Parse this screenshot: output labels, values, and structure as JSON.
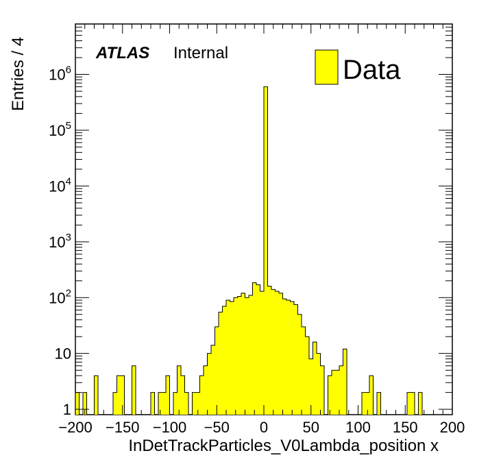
{
  "chart_data": {
    "type": "histogram",
    "xlabel": "InDetTrackParticles_V0Lambda_position x",
    "ylabel": "Entries / 4",
    "x_range": [
      -200,
      200
    ],
    "y_range": [
      0.8,
      8000000
    ],
    "y_scale": "log",
    "bin_width": 4,
    "fill_color": "#ffff00",
    "line_color": "#000000",
    "x_ticks": [
      {
        "value": -200,
        "label": "−200"
      },
      {
        "value": -150,
        "label": "−150"
      },
      {
        "value": -100,
        "label": "−100"
      },
      {
        "value": -50,
        "label": "−50"
      },
      {
        "value": 0,
        "label": "0"
      },
      {
        "value": 50,
        "label": "50"
      },
      {
        "value": 100,
        "label": "100"
      },
      {
        "value": 150,
        "label": "150"
      },
      {
        "value": 200,
        "label": "200"
      }
    ],
    "y_ticks": [
      {
        "value": 1,
        "base": "1",
        "exp": ""
      },
      {
        "value": 10,
        "base": "10",
        "exp": ""
      },
      {
        "value": 100,
        "base": "10",
        "exp": "2"
      },
      {
        "value": 1000,
        "base": "10",
        "exp": "3"
      },
      {
        "value": 10000,
        "base": "10",
        "exp": "4"
      },
      {
        "value": 100000,
        "base": "10",
        "exp": "5"
      },
      {
        "value": 1000000,
        "base": "10",
        "exp": "6"
      }
    ],
    "bins": [
      {
        "x0": -200,
        "count": 2
      },
      {
        "x0": -196,
        "count": 0
      },
      {
        "x0": -192,
        "count": 2
      },
      {
        "x0": -188,
        "count": 0
      },
      {
        "x0": -184,
        "count": 0
      },
      {
        "x0": -180,
        "count": 4
      },
      {
        "x0": -176,
        "count": 0
      },
      {
        "x0": -172,
        "count": 0
      },
      {
        "x0": -168,
        "count": 0
      },
      {
        "x0": -164,
        "count": 0
      },
      {
        "x0": -160,
        "count": 2
      },
      {
        "x0": -156,
        "count": 4
      },
      {
        "x0": -152,
        "count": 4
      },
      {
        "x0": -148,
        "count": 0
      },
      {
        "x0": -144,
        "count": 0
      },
      {
        "x0": -140,
        "count": 6
      },
      {
        "x0": -136,
        "count": 0
      },
      {
        "x0": -132,
        "count": 0
      },
      {
        "x0": -128,
        "count": 0
      },
      {
        "x0": -124,
        "count": 0
      },
      {
        "x0": -120,
        "count": 2
      },
      {
        "x0": -116,
        "count": 0
      },
      {
        "x0": -112,
        "count": 2
      },
      {
        "x0": -108,
        "count": 2
      },
      {
        "x0": -104,
        "count": 4
      },
      {
        "x0": -100,
        "count": 0
      },
      {
        "x0": -96,
        "count": 2
      },
      {
        "x0": -92,
        "count": 6
      },
      {
        "x0": -88,
        "count": 4
      },
      {
        "x0": -84,
        "count": 2
      },
      {
        "x0": -80,
        "count": 0
      },
      {
        "x0": -76,
        "count": 2
      },
      {
        "x0": -72,
        "count": 2
      },
      {
        "x0": -68,
        "count": 4
      },
      {
        "x0": -64,
        "count": 6
      },
      {
        "x0": -60,
        "count": 10
      },
      {
        "x0": -56,
        "count": 14
      },
      {
        "x0": -52,
        "count": 30
      },
      {
        "x0": -48,
        "count": 55
      },
      {
        "x0": -44,
        "count": 70
      },
      {
        "x0": -40,
        "count": 90
      },
      {
        "x0": -36,
        "count": 85
      },
      {
        "x0": -32,
        "count": 100
      },
      {
        "x0": -28,
        "count": 105
      },
      {
        "x0": -24,
        "count": 120
      },
      {
        "x0": -20,
        "count": 100
      },
      {
        "x0": -16,
        "count": 110
      },
      {
        "x0": -12,
        "count": 185
      },
      {
        "x0": -8,
        "count": 170
      },
      {
        "x0": -4,
        "count": 130
      },
      {
        "x0": 0,
        "count": 600000
      },
      {
        "x0": 4,
        "count": 160
      },
      {
        "x0": 8,
        "count": 140
      },
      {
        "x0": 12,
        "count": 130
      },
      {
        "x0": 16,
        "count": 120
      },
      {
        "x0": 20,
        "count": 95
      },
      {
        "x0": 24,
        "count": 90
      },
      {
        "x0": 28,
        "count": 85
      },
      {
        "x0": 32,
        "count": 75
      },
      {
        "x0": 36,
        "count": 50
      },
      {
        "x0": 40,
        "count": 30
      },
      {
        "x0": 44,
        "count": 20
      },
      {
        "x0": 48,
        "count": 8
      },
      {
        "x0": 52,
        "count": 16
      },
      {
        "x0": 56,
        "count": 10
      },
      {
        "x0": 60,
        "count": 6
      },
      {
        "x0": 64,
        "count": 0
      },
      {
        "x0": 68,
        "count": 4
      },
      {
        "x0": 72,
        "count": 5
      },
      {
        "x0": 76,
        "count": 5
      },
      {
        "x0": 80,
        "count": 6
      },
      {
        "x0": 84,
        "count": 12
      },
      {
        "x0": 88,
        "count": 0
      },
      {
        "x0": 92,
        "count": 0
      },
      {
        "x0": 96,
        "count": 0
      },
      {
        "x0": 100,
        "count": 0
      },
      {
        "x0": 104,
        "count": 2
      },
      {
        "x0": 108,
        "count": 2
      },
      {
        "x0": 112,
        "count": 4
      },
      {
        "x0": 116,
        "count": 0
      },
      {
        "x0": 120,
        "count": 2
      },
      {
        "x0": 124,
        "count": 0
      },
      {
        "x0": 128,
        "count": 0
      },
      {
        "x0": 132,
        "count": 0
      },
      {
        "x0": 136,
        "count": 0
      },
      {
        "x0": 140,
        "count": 0
      },
      {
        "x0": 144,
        "count": 0
      },
      {
        "x0": 148,
        "count": 0
      },
      {
        "x0": 152,
        "count": 2
      },
      {
        "x0": 156,
        "count": 2
      },
      {
        "x0": 160,
        "count": 0
      },
      {
        "x0": 164,
        "count": 2
      },
      {
        "x0": 168,
        "count": 0
      },
      {
        "x0": 172,
        "count": 0
      },
      {
        "x0": 176,
        "count": 0
      },
      {
        "x0": 180,
        "count": 0
      },
      {
        "x0": 184,
        "count": 0
      },
      {
        "x0": 188,
        "count": 0
      },
      {
        "x0": 192,
        "count": 0
      },
      {
        "x0": 196,
        "count": 0
      }
    ],
    "legend": {
      "entries": [
        {
          "label": "Data",
          "color": "#ffff00"
        }
      ],
      "position": "top-right"
    },
    "annotations": {
      "experiment": "ATLAS",
      "status": "Internal"
    }
  }
}
